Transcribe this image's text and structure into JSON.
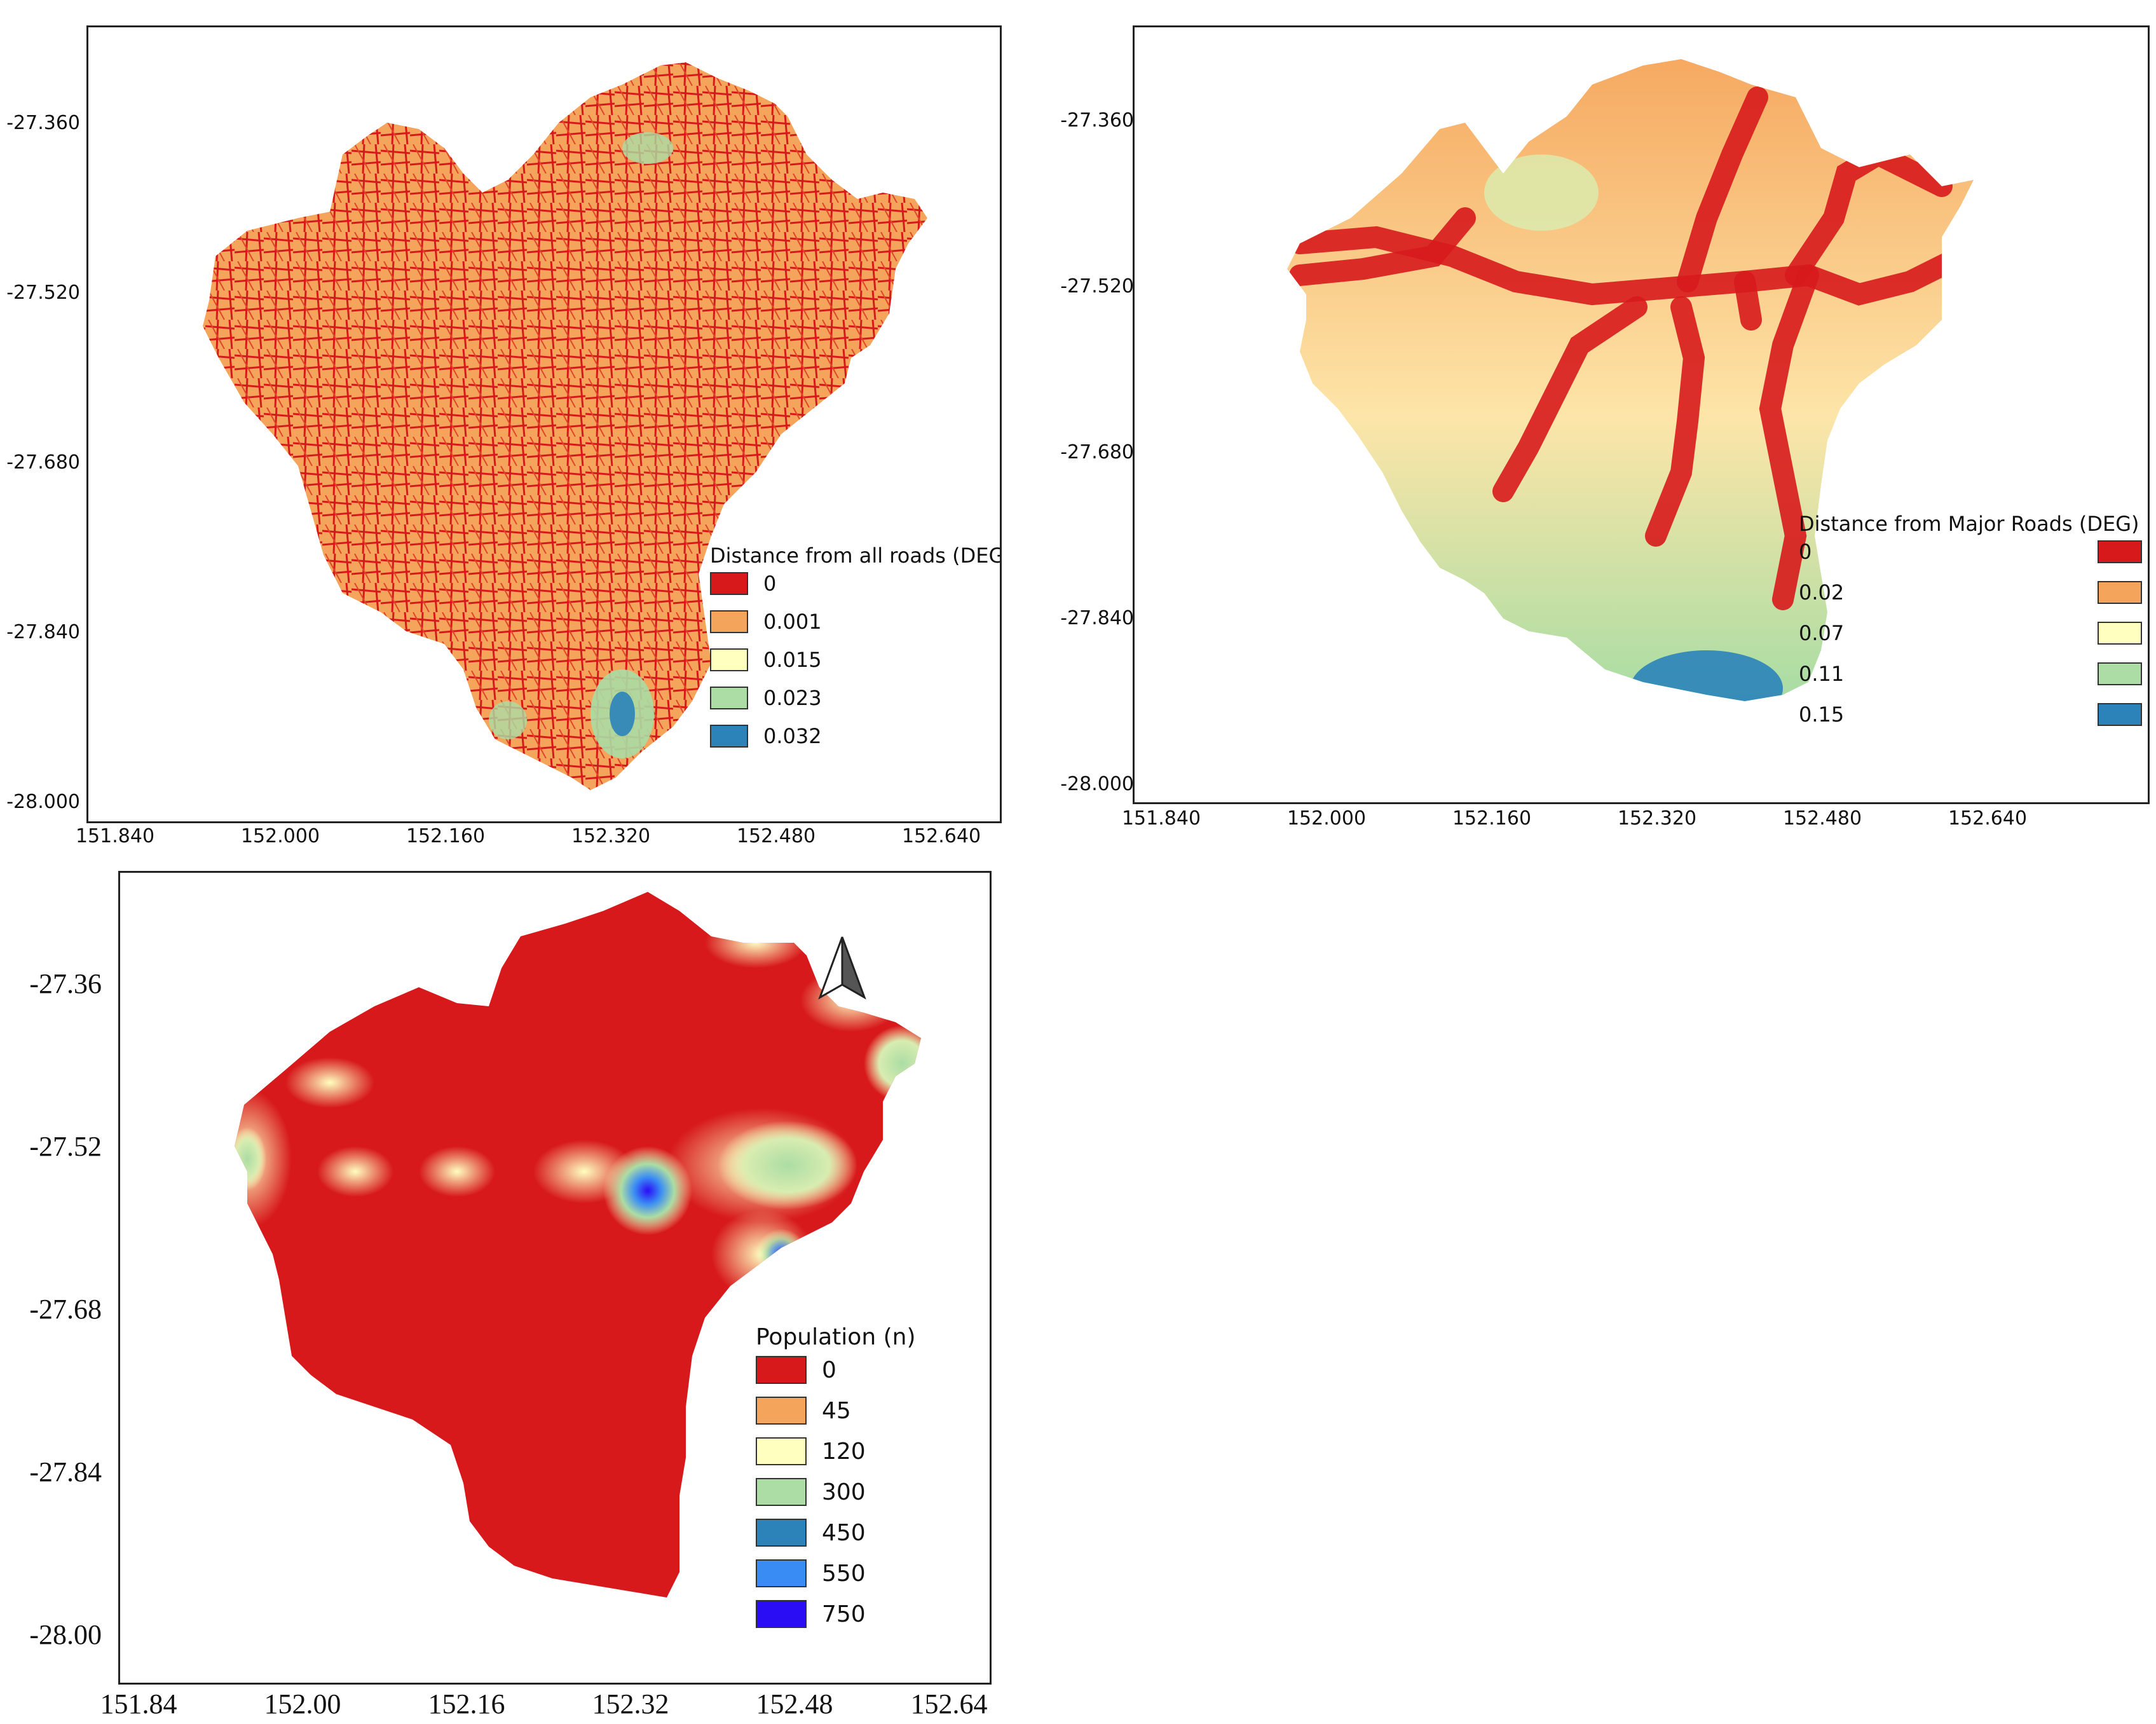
{
  "maps": [
    {
      "legend_title": "Distance from all roads (DEG)",
      "y_ticks": [
        "-27.360",
        "-27.520",
        "-27.680",
        "-27.840",
        "-28.000"
      ],
      "x_ticks": [
        "151.840",
        "152.000",
        "152.160",
        "152.320",
        "152.480",
        "152.640"
      ],
      "legend": [
        {
          "label": "0",
          "color": "#d7191c"
        },
        {
          "label": "0.001",
          "color": "#f5a45b"
        },
        {
          "label": "0.015",
          "color": "#ffffbf"
        },
        {
          "label": "0.023",
          "color": "#abdda4"
        },
        {
          "label": "0.032",
          "color": "#2b83ba"
        }
      ]
    },
    {
      "legend_title": "Distance from Major Roads (DEG)",
      "y_ticks": [
        "-27.360",
        "-27.520",
        "-27.680",
        "-27.840",
        "-28.000"
      ],
      "x_ticks": [
        "151.840",
        "152.000",
        "152.160",
        "152.320",
        "152.480",
        "152.640"
      ],
      "legend": [
        {
          "label": "0",
          "color": "#d7191c"
        },
        {
          "label": "0.02",
          "color": "#f5a45b"
        },
        {
          "label": "0.07",
          "color": "#ffffbf"
        },
        {
          "label": "0.11",
          "color": "#abdda4"
        },
        {
          "label": "0.15",
          "color": "#2b83ba"
        }
      ]
    },
    {
      "legend_title": "Population (n)",
      "y_ticks": [
        "-27.36",
        "-27.52",
        "-27.68",
        "-27.84",
        "-28.00"
      ],
      "x_ticks": [
        "151.84",
        "152.00",
        "152.16",
        "152.32",
        "152.48",
        "152.64"
      ],
      "legend": [
        {
          "label": "0",
          "color": "#d7191c"
        },
        {
          "label": "45",
          "color": "#f5a45b"
        },
        {
          "label": "120",
          "color": "#ffffbf"
        },
        {
          "label": "300",
          "color": "#abdda4"
        },
        {
          "label": "450",
          "color": "#2b83ba"
        },
        {
          "label": "550",
          "color": "#3a8cf5"
        },
        {
          "label": "750",
          "color": "#2a0cf5"
        }
      ],
      "north_arrow_icon": "north-arrow-icon"
    }
  ]
}
